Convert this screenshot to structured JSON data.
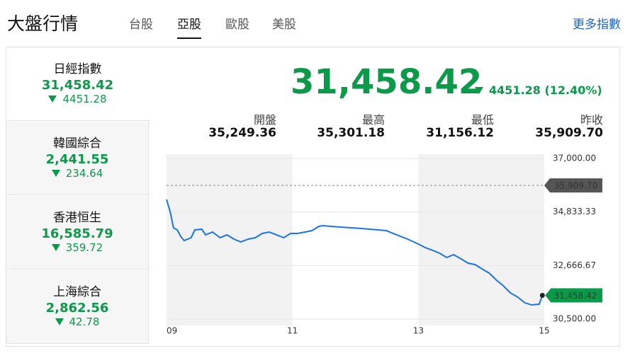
{
  "header": {
    "title": "大盤行情",
    "tabs": [
      "台股",
      "亞股",
      "歐股",
      "美股"
    ],
    "active_tab": 1,
    "more": "更多指數"
  },
  "sidebar": [
    {
      "name": "日經指數",
      "value": "31,458.42",
      "change": "4451.28"
    },
    {
      "name": "韓國綜合",
      "value": "2,441.55",
      "change": "234.64"
    },
    {
      "name": "香港恒生",
      "value": "16,585.79",
      "change": "359.72"
    },
    {
      "name": "上海綜合",
      "value": "2,862.56",
      "change": "42.78"
    }
  ],
  "selected": 0,
  "main": {
    "price": "31,458.42",
    "change": "4451.28 (12.40%)",
    "stats": [
      {
        "label": "開盤",
        "value": "35,249.36"
      },
      {
        "label": "最高",
        "value": "35,301.18"
      },
      {
        "label": "最低",
        "value": "31,156.12"
      },
      {
        "label": "昨收",
        "value": "35,909.70"
      }
    ]
  },
  "chart_data": {
    "type": "line",
    "x": [
      9.0,
      9.06,
      9.11,
      9.17,
      9.23,
      9.28,
      9.34,
      9.39,
      9.45,
      9.56,
      9.62,
      9.73,
      9.85,
      9.96,
      10.07,
      10.18,
      10.3,
      10.41,
      10.52,
      10.63,
      10.75,
      10.86,
      10.97,
      11.08,
      11.2,
      11.31,
      11.42,
      11.48,
      11.76,
      12.1,
      12.49,
      12.66,
      12.83,
      13.0,
      13.11,
      13.23,
      13.34,
      13.45,
      13.56,
      13.68,
      13.79,
      13.9,
      14.01,
      14.13,
      14.24,
      14.35,
      14.46,
      14.58,
      14.69,
      14.8,
      14.92,
      14.97
    ],
    "series": [
      {
        "color": "#1a73e8",
        "values": [
          35339,
          34824,
          34194,
          34108,
          33822,
          33678,
          33736,
          33793,
          34108,
          34137,
          33907,
          34022,
          33793,
          33907,
          33736,
          33621,
          33736,
          33793,
          33965,
          34022,
          33907,
          33793,
          33965,
          33965,
          34022,
          34079,
          34251,
          34280,
          34223,
          34165,
          34079,
          33907,
          33736,
          33536,
          33392,
          33278,
          33163,
          32991,
          33106,
          32934,
          32762,
          32705,
          32533,
          32351,
          32075,
          31846,
          31560,
          31387,
          31158,
          31072,
          31101,
          31458.42
        ],
        "value_labels": [
          null,
          null,
          null,
          null,
          null,
          null,
          null,
          null,
          null,
          null,
          null,
          null,
          null,
          null,
          null,
          null,
          null,
          null,
          null,
          null,
          null,
          null,
          null,
          null,
          null,
          null,
          null,
          null,
          null,
          null,
          null,
          null,
          null,
          null,
          null,
          null,
          null,
          null,
          null,
          null,
          null,
          null,
          null,
          null,
          null,
          null,
          null,
          null,
          null,
          null,
          null,
          "31,458.42"
        ]
      }
    ],
    "xlim": [
      9,
      15
    ],
    "xticks": [
      {
        "value": 9,
        "label": "09"
      },
      11,
      13,
      15
    ],
    "ylim": [
      30500,
      37000
    ],
    "yticks": [
      {
        "value": 37000,
        "label": "37,000.00"
      },
      {
        "value": 34833.33,
        "label": "34,833.33"
      },
      {
        "value": 32666.67,
        "label": "32,666.67"
      },
      {
        "value": 30500,
        "label": "30,500.00"
      }
    ],
    "reference": {
      "value": 35909.7,
      "label": "35,909.70"
    }
  }
}
